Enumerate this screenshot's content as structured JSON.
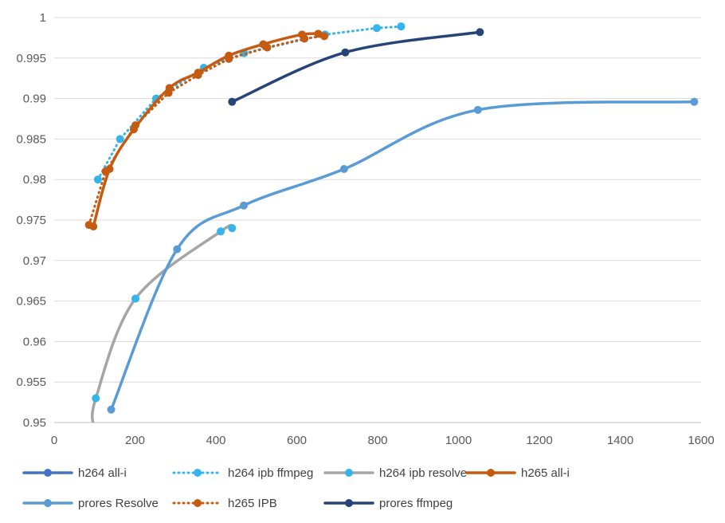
{
  "chart_data": {
    "type": "line",
    "title": "",
    "xlabel": "",
    "ylabel": "",
    "xlim": [
      0,
      1600
    ],
    "ylim": [
      0.95,
      1
    ],
    "x_ticks": [
      "0",
      "200",
      "400",
      "600",
      "800",
      "1000",
      "1200",
      "1400",
      "1600"
    ],
    "y_ticks": [
      "0.95",
      "0.955",
      "0.96",
      "0.965",
      "0.97",
      "0.975",
      "0.98",
      "0.985",
      "0.99",
      "0.995",
      "1"
    ],
    "grid": "horizontal",
    "legend_position": "bottom",
    "series": [
      {
        "name": "h264 all-i",
        "color": "#4472C4",
        "style": "solid",
        "smooth": true,
        "x": [],
        "y": []
      },
      {
        "name": "h264 ipb ffmpeg",
        "color": "#35B3EB",
        "style": "dotted",
        "smooth": false,
        "x": [
          108,
          163,
          252,
          370,
          470,
          670,
          798,
          858
        ],
        "y": [
          0.98,
          0.985,
          0.99,
          0.9938,
          0.9956,
          0.9979,
          0.9987,
          0.9989
        ]
      },
      {
        "name": "h264 ipb resolve",
        "color": "#A5A5A5",
        "point_color": "#35B3EB",
        "style": "solid",
        "smooth": true,
        "x": [
          98,
          103,
          201,
          412,
          440
        ],
        "y": [
          0.9494,
          0.953,
          0.9653,
          0.9736,
          0.974
        ]
      },
      {
        "name": "h265 all-i",
        "color": "#C55A11",
        "style": "solid",
        "smooth": true,
        "x": [
          97,
          137,
          197,
          285,
          356,
          432,
          517,
          613,
          653
        ],
        "y": [
          0.9742,
          0.9813,
          0.9862,
          0.9913,
          0.9932,
          0.9953,
          0.9967,
          0.9979,
          0.998
        ]
      },
      {
        "name": "prores Resolve",
        "color": "#5B9BD5",
        "style": "solid",
        "smooth": true,
        "x": [
          141,
          304,
          469,
          717,
          1048,
          1583
        ],
        "y": [
          0.9516,
          0.9714,
          0.9768,
          0.9813,
          0.9886,
          0.9896
        ]
      },
      {
        "name": "h265 IPB",
        "color": "#C55A11",
        "style": "dotted",
        "smooth": false,
        "x": [
          86,
          127,
          201,
          283,
          356,
          432,
          527,
          619,
          668
        ],
        "y": [
          0.9744,
          0.981,
          0.9867,
          0.9907,
          0.9929,
          0.9949,
          0.9963,
          0.9974,
          0.9977
        ]
      },
      {
        "name": "prores ffmpeg",
        "color": "#264478",
        "style": "solid",
        "smooth": true,
        "x": [
          440,
          720,
          1053
        ],
        "y": [
          0.9896,
          0.9957,
          0.9982
        ]
      }
    ]
  }
}
